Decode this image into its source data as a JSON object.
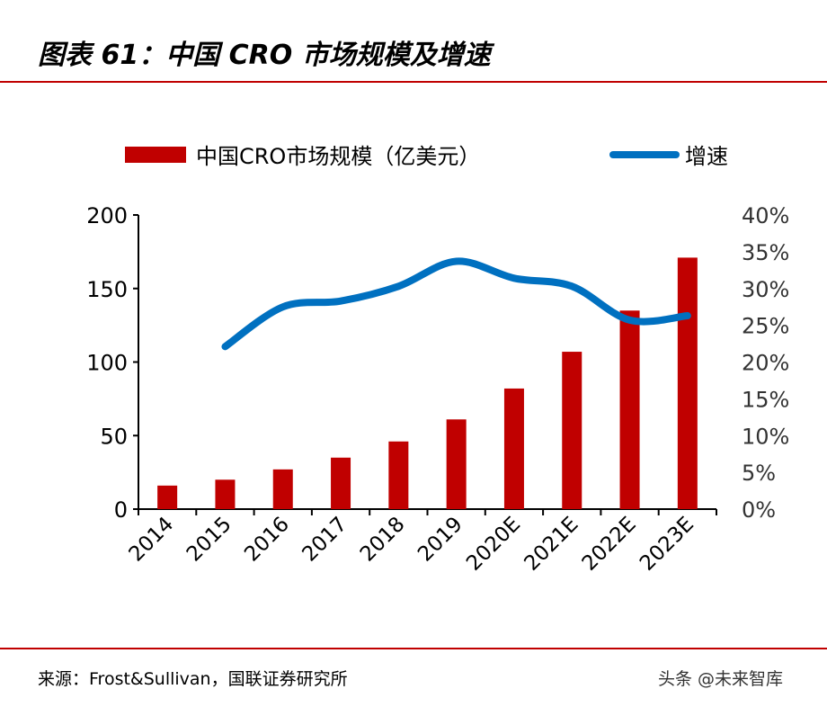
{
  "header": {
    "title": "图表 61：中国 CRO 市场规模及增速"
  },
  "footer": {
    "source": "来源：Frost&Sullivan，国联证券研究所",
    "watermark": "头条 @未来智库"
  },
  "colors": {
    "bar": "#c00000",
    "line": "#0070c0",
    "rule": "#c00000"
  },
  "chart_data": {
    "type": "bar+line",
    "categories": [
      "2014",
      "2015",
      "2016",
      "2017",
      "2018",
      "2019",
      "2020E",
      "2021E",
      "2022E",
      "2023E"
    ],
    "series": [
      {
        "name": "中国CRO市场规模（亿美元）",
        "type": "bar",
        "axis": "left",
        "values": [
          16,
          20,
          27,
          35,
          46,
          61,
          82,
          107,
          135,
          171
        ]
      },
      {
        "name": "增速",
        "type": "line",
        "axis": "right",
        "values": [
          null,
          22.1,
          27.5,
          28.3,
          30.3,
          33.7,
          31.4,
          30.3,
          25.7,
          26.3
        ]
      }
    ],
    "left_axis": {
      "ylim": [
        0,
        200
      ],
      "ticks": [
        "0",
        "50",
        "100",
        "150",
        "200"
      ]
    },
    "right_axis": {
      "ylim": [
        0,
        40
      ],
      "ticks": [
        "0%",
        "5%",
        "10%",
        "15%",
        "20%",
        "25%",
        "30%",
        "35%",
        "40%"
      ]
    },
    "legend": "top",
    "grid": false
  }
}
